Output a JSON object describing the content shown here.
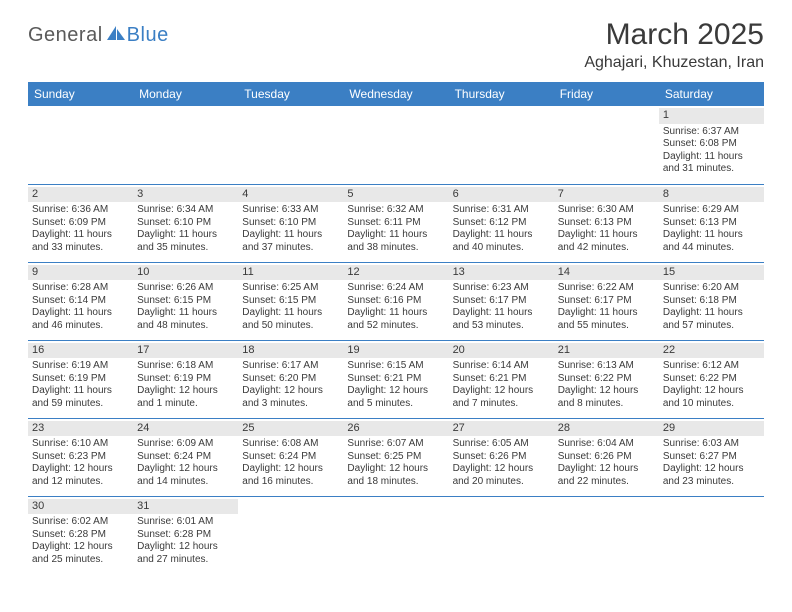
{
  "logo": {
    "part1": "General",
    "part2": "Blue",
    "sail_color": "#3b7fc4",
    "text1_color": "#5a5a5a"
  },
  "title": "March 2025",
  "location": "Aghajari, Khuzestan, Iran",
  "colors": {
    "header_bg": "#3b7fc4",
    "header_text": "#ffffff",
    "border": "#3b7fc4",
    "daynum_bg": "#e8e8e8",
    "text": "#3a3a3a",
    "background": "#ffffff"
  },
  "typography": {
    "title_fontsize": 30,
    "location_fontsize": 16,
    "header_fontsize": 12,
    "cell_fontsize": 10,
    "daynum_fontsize": 11
  },
  "weekdays": [
    "Sunday",
    "Monday",
    "Tuesday",
    "Wednesday",
    "Thursday",
    "Friday",
    "Saturday"
  ],
  "weeks": [
    [
      null,
      null,
      null,
      null,
      null,
      null,
      {
        "n": "1",
        "sunrise": "Sunrise: 6:37 AM",
        "sunset": "Sunset: 6:08 PM",
        "day1": "Daylight: 11 hours",
        "day2": "and 31 minutes."
      }
    ],
    [
      {
        "n": "2",
        "sunrise": "Sunrise: 6:36 AM",
        "sunset": "Sunset: 6:09 PM",
        "day1": "Daylight: 11 hours",
        "day2": "and 33 minutes."
      },
      {
        "n": "3",
        "sunrise": "Sunrise: 6:34 AM",
        "sunset": "Sunset: 6:10 PM",
        "day1": "Daylight: 11 hours",
        "day2": "and 35 minutes."
      },
      {
        "n": "4",
        "sunrise": "Sunrise: 6:33 AM",
        "sunset": "Sunset: 6:10 PM",
        "day1": "Daylight: 11 hours",
        "day2": "and 37 minutes."
      },
      {
        "n": "5",
        "sunrise": "Sunrise: 6:32 AM",
        "sunset": "Sunset: 6:11 PM",
        "day1": "Daylight: 11 hours",
        "day2": "and 38 minutes."
      },
      {
        "n": "6",
        "sunrise": "Sunrise: 6:31 AM",
        "sunset": "Sunset: 6:12 PM",
        "day1": "Daylight: 11 hours",
        "day2": "and 40 minutes."
      },
      {
        "n": "7",
        "sunrise": "Sunrise: 6:30 AM",
        "sunset": "Sunset: 6:13 PM",
        "day1": "Daylight: 11 hours",
        "day2": "and 42 minutes."
      },
      {
        "n": "8",
        "sunrise": "Sunrise: 6:29 AM",
        "sunset": "Sunset: 6:13 PM",
        "day1": "Daylight: 11 hours",
        "day2": "and 44 minutes."
      }
    ],
    [
      {
        "n": "9",
        "sunrise": "Sunrise: 6:28 AM",
        "sunset": "Sunset: 6:14 PM",
        "day1": "Daylight: 11 hours",
        "day2": "and 46 minutes."
      },
      {
        "n": "10",
        "sunrise": "Sunrise: 6:26 AM",
        "sunset": "Sunset: 6:15 PM",
        "day1": "Daylight: 11 hours",
        "day2": "and 48 minutes."
      },
      {
        "n": "11",
        "sunrise": "Sunrise: 6:25 AM",
        "sunset": "Sunset: 6:15 PM",
        "day1": "Daylight: 11 hours",
        "day2": "and 50 minutes."
      },
      {
        "n": "12",
        "sunrise": "Sunrise: 6:24 AM",
        "sunset": "Sunset: 6:16 PM",
        "day1": "Daylight: 11 hours",
        "day2": "and 52 minutes."
      },
      {
        "n": "13",
        "sunrise": "Sunrise: 6:23 AM",
        "sunset": "Sunset: 6:17 PM",
        "day1": "Daylight: 11 hours",
        "day2": "and 53 minutes."
      },
      {
        "n": "14",
        "sunrise": "Sunrise: 6:22 AM",
        "sunset": "Sunset: 6:17 PM",
        "day1": "Daylight: 11 hours",
        "day2": "and 55 minutes."
      },
      {
        "n": "15",
        "sunrise": "Sunrise: 6:20 AM",
        "sunset": "Sunset: 6:18 PM",
        "day1": "Daylight: 11 hours",
        "day2": "and 57 minutes."
      }
    ],
    [
      {
        "n": "16",
        "sunrise": "Sunrise: 6:19 AM",
        "sunset": "Sunset: 6:19 PM",
        "day1": "Daylight: 11 hours",
        "day2": "and 59 minutes."
      },
      {
        "n": "17",
        "sunrise": "Sunrise: 6:18 AM",
        "sunset": "Sunset: 6:19 PM",
        "day1": "Daylight: 12 hours",
        "day2": "and 1 minute."
      },
      {
        "n": "18",
        "sunrise": "Sunrise: 6:17 AM",
        "sunset": "Sunset: 6:20 PM",
        "day1": "Daylight: 12 hours",
        "day2": "and 3 minutes."
      },
      {
        "n": "19",
        "sunrise": "Sunrise: 6:15 AM",
        "sunset": "Sunset: 6:21 PM",
        "day1": "Daylight: 12 hours",
        "day2": "and 5 minutes."
      },
      {
        "n": "20",
        "sunrise": "Sunrise: 6:14 AM",
        "sunset": "Sunset: 6:21 PM",
        "day1": "Daylight: 12 hours",
        "day2": "and 7 minutes."
      },
      {
        "n": "21",
        "sunrise": "Sunrise: 6:13 AM",
        "sunset": "Sunset: 6:22 PM",
        "day1": "Daylight: 12 hours",
        "day2": "and 8 minutes."
      },
      {
        "n": "22",
        "sunrise": "Sunrise: 6:12 AM",
        "sunset": "Sunset: 6:22 PM",
        "day1": "Daylight: 12 hours",
        "day2": "and 10 minutes."
      }
    ],
    [
      {
        "n": "23",
        "sunrise": "Sunrise: 6:10 AM",
        "sunset": "Sunset: 6:23 PM",
        "day1": "Daylight: 12 hours",
        "day2": "and 12 minutes."
      },
      {
        "n": "24",
        "sunrise": "Sunrise: 6:09 AM",
        "sunset": "Sunset: 6:24 PM",
        "day1": "Daylight: 12 hours",
        "day2": "and 14 minutes."
      },
      {
        "n": "25",
        "sunrise": "Sunrise: 6:08 AM",
        "sunset": "Sunset: 6:24 PM",
        "day1": "Daylight: 12 hours",
        "day2": "and 16 minutes."
      },
      {
        "n": "26",
        "sunrise": "Sunrise: 6:07 AM",
        "sunset": "Sunset: 6:25 PM",
        "day1": "Daylight: 12 hours",
        "day2": "and 18 minutes."
      },
      {
        "n": "27",
        "sunrise": "Sunrise: 6:05 AM",
        "sunset": "Sunset: 6:26 PM",
        "day1": "Daylight: 12 hours",
        "day2": "and 20 minutes."
      },
      {
        "n": "28",
        "sunrise": "Sunrise: 6:04 AM",
        "sunset": "Sunset: 6:26 PM",
        "day1": "Daylight: 12 hours",
        "day2": "and 22 minutes."
      },
      {
        "n": "29",
        "sunrise": "Sunrise: 6:03 AM",
        "sunset": "Sunset: 6:27 PM",
        "day1": "Daylight: 12 hours",
        "day2": "and 23 minutes."
      }
    ],
    [
      {
        "n": "30",
        "sunrise": "Sunrise: 6:02 AM",
        "sunset": "Sunset: 6:28 PM",
        "day1": "Daylight: 12 hours",
        "day2": "and 25 minutes."
      },
      {
        "n": "31",
        "sunrise": "Sunrise: 6:01 AM",
        "sunset": "Sunset: 6:28 PM",
        "day1": "Daylight: 12 hours",
        "day2": "and 27 minutes."
      },
      null,
      null,
      null,
      null,
      null
    ]
  ]
}
